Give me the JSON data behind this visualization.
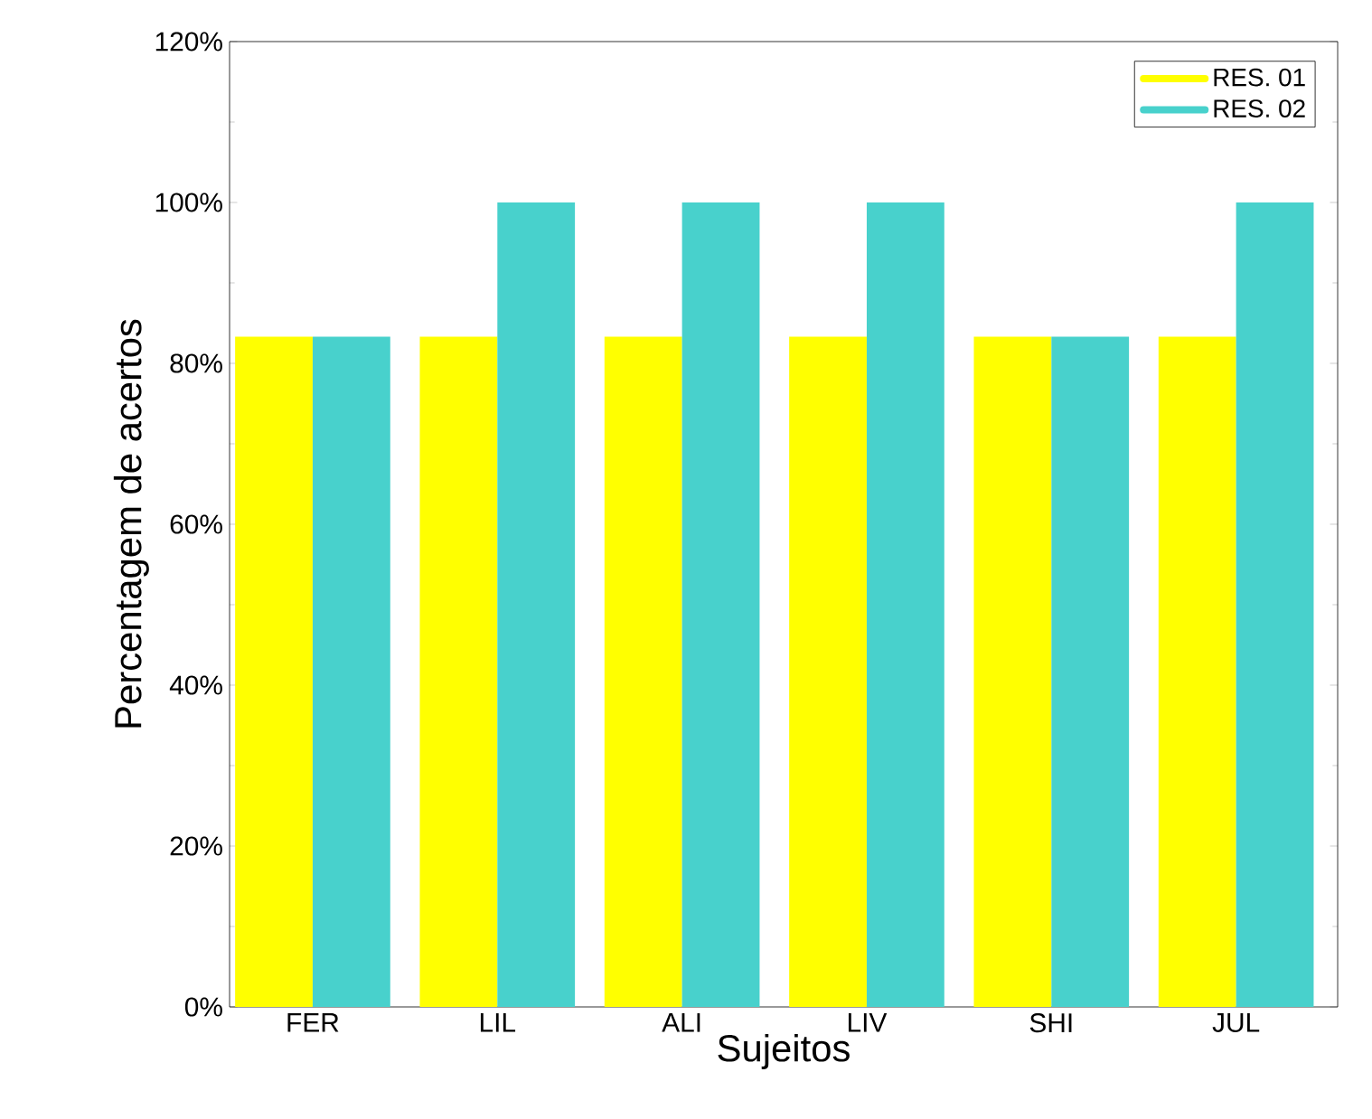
{
  "chart_data": {
    "type": "bar",
    "xlabel": "Sujeitos",
    "ylabel": "Percentagem de acertos",
    "categories": [
      "FER",
      "LIL",
      "ALI",
      "LIV",
      "SHI",
      "JUL"
    ],
    "series": [
      {
        "name": "RES. 01",
        "color": "#ffff00",
        "values": [
          83.3,
          83.3,
          83.3,
          83.3,
          83.3,
          83.3
        ]
      },
      {
        "name": "RES. 02",
        "color": "#48d1cc",
        "values": [
          83.3,
          100,
          100,
          100,
          83.3,
          100
        ]
      }
    ],
    "ylim": [
      0,
      120
    ],
    "yticks": [
      {
        "value": 0,
        "label": "0%"
      },
      {
        "value": 20,
        "label": "20%"
      },
      {
        "value": 40,
        "label": "40%"
      },
      {
        "value": 60,
        "label": "60%"
      },
      {
        "value": 80,
        "label": "80%"
      },
      {
        "value": 100,
        "label": "100%"
      },
      {
        "value": 120,
        "label": "120%"
      }
    ],
    "grid": false,
    "legend": "top right"
  }
}
